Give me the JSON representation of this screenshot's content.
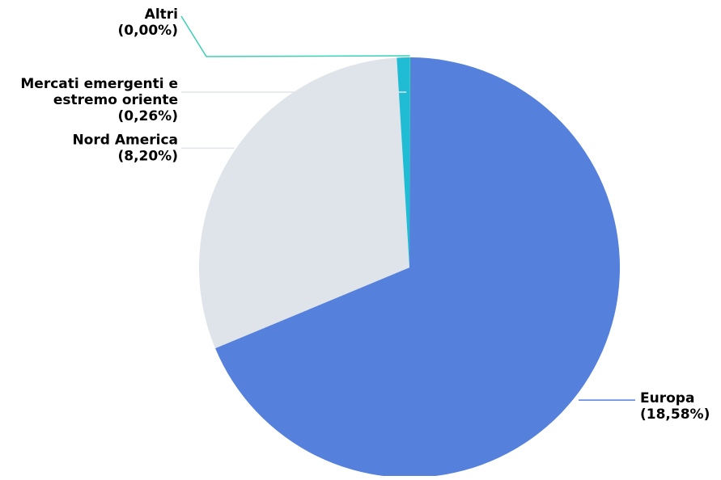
{
  "chart_data": {
    "type": "pie",
    "title": "",
    "slices": [
      {
        "name": "Europa",
        "value": 18.58,
        "value_label": "(18,58%)",
        "color": "#5580dc"
      },
      {
        "name": "Nord America",
        "value": 8.2,
        "value_label": "(8,20%)",
        "color": "#dfe4ea"
      },
      {
        "name": "Mercati emergenti e estremo oriente",
        "name_lines": [
          "Mercati emergenti e",
          "estremo oriente"
        ],
        "value": 0.26,
        "value_label": "(0,26%)",
        "color": "#1fbcd4"
      },
      {
        "name": "Altri",
        "value": 0.0,
        "value_label": "(0,00%)",
        "color": "#3ad0b4"
      }
    ],
    "start_angle_deg": 0,
    "direction": "clockwise",
    "legend": "none",
    "labels": "outside-with-leader-lines"
  }
}
